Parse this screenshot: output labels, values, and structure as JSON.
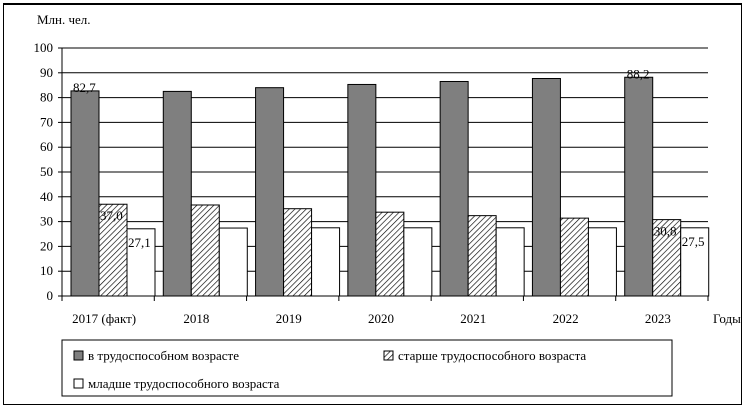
{
  "chart_data": {
    "type": "bar",
    "ylabel": "Млн. чел.",
    "xlabel": "Годы",
    "ylim": [
      0,
      100
    ],
    "ytick_step": 10,
    "grid": true,
    "legend_position": "bottom",
    "categories": [
      "2017 (факт)",
      "2018",
      "2019",
      "2020",
      "2021",
      "2022",
      "2023"
    ],
    "series": [
      {
        "name": "в трудоспособном возрасте",
        "values": [
          82.7,
          82.5,
          84.0,
          85.3,
          86.5,
          87.7,
          88.2
        ],
        "data_labels": [
          "82,7",
          "",
          "",
          "",
          "",
          "",
          "88,2"
        ],
        "fill": "#7f7f7f",
        "pattern": "solid"
      },
      {
        "name": "старше трудоспособного возраста",
        "values": [
          37.0,
          36.7,
          35.2,
          33.8,
          32.4,
          31.4,
          30.8
        ],
        "data_labels": [
          "37,0",
          "",
          "",
          "",
          "",
          "",
          "30,8"
        ],
        "fill": "#ffffff",
        "pattern": "hatch"
      },
      {
        "name": "младше трудоспособного возраста",
        "values": [
          27.1,
          27.4,
          27.5,
          27.5,
          27.5,
          27.5,
          27.5
        ],
        "data_labels": [
          "27,1",
          "",
          "",
          "",
          "",
          "",
          "27,5"
        ],
        "fill": "#ffffff",
        "pattern": "solid"
      }
    ]
  }
}
